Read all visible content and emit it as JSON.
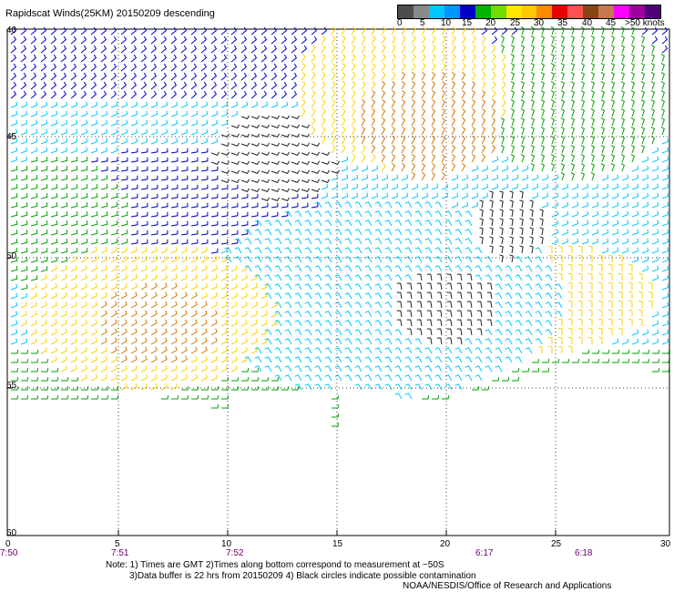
{
  "title": "Rapidscat Winds(25KM) 20150209 descending",
  "legend": {
    "colors": [
      "#4d4d4d",
      "#8a8a8a",
      "#00c8ff",
      "#0096ff",
      "#0000c8",
      "#00b400",
      "#70dc00",
      "#ffe600",
      "#ffc800",
      "#ff8c00",
      "#e60000",
      "#ff5050",
      "#8b4513",
      "#c87850",
      "#ff00ff",
      "#a000a0",
      "#500078"
    ],
    "labels": [
      "0",
      "5",
      "10",
      "15",
      "20",
      "25",
      "30",
      "35",
      "40",
      "45",
      ">50 knots"
    ]
  },
  "y_labels": [
    "40",
    "45",
    "50",
    "55",
    "60"
  ],
  "x_labels": [
    "0",
    "5",
    "10",
    "15",
    "20",
    "25",
    "30"
  ],
  "time_labels": [
    "7:50",
    "7:51",
    "7:52",
    "6:17",
    "6:18"
  ],
  "notes": [
    "Note: 1) Times are GMT 2)Times along bottom correspond to measurement at ~50S",
    "3)Data buffer is 22 hrs from 20150209 4) Black circles indicate possible contamination",
    "NOAA/NESDIS/Office of Research and Applications"
  ],
  "wind_colors": {
    "calm": "#222222",
    "light": "#00c8ff",
    "moderate": "#0000c8",
    "fresh": "#00a000",
    "strong": "#ffd200",
    "gale": "#d27800",
    "storm": "#c80000"
  }
}
